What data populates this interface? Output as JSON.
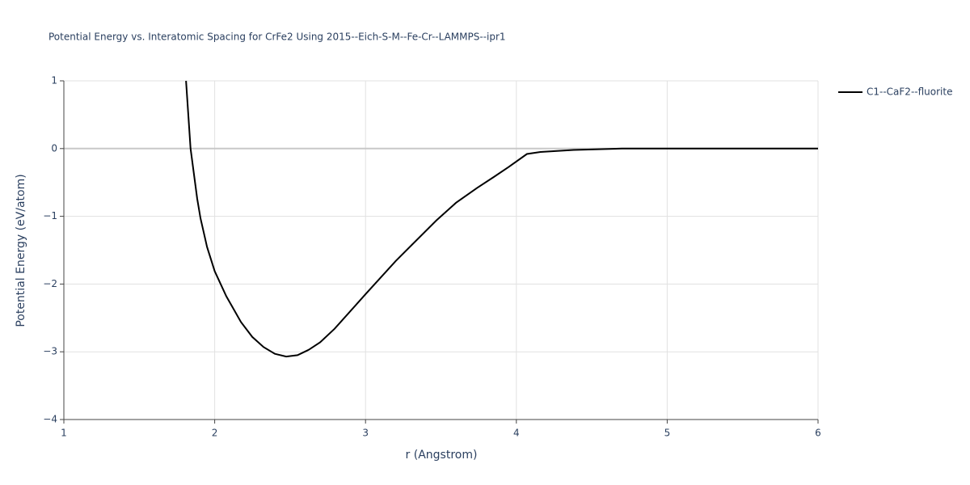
{
  "chart_data": {
    "type": "line",
    "title": "Potential Energy vs. Interatomic Spacing for CrFe2 Using 2015--Eich-S-M--Fe-Cr--LAMMPS--ipr1",
    "x_label": "r (Angstrom)",
    "y_label": "Potential Energy (eV/atom)",
    "x": [
      1.81,
      1.84,
      1.884,
      1.906,
      1.949,
      2.0,
      2.077,
      2.174,
      2.249,
      2.324,
      2.399,
      2.474,
      2.549,
      2.624,
      2.699,
      2.795,
      3.0,
      3.2,
      3.47,
      3.6,
      3.74,
      3.85,
      3.95,
      4.07,
      4.16,
      4.38,
      4.7,
      6.0
    ],
    "series": [
      {
        "name": "C1--CaF2--fluorite",
        "color": "#000000",
        "values": [
          1.0,
          0.0,
          -0.74,
          -1.03,
          -1.45,
          -1.81,
          -2.18,
          -2.56,
          -2.78,
          -2.93,
          -3.03,
          -3.07,
          -3.05,
          -2.97,
          -2.86,
          -2.66,
          -2.15,
          -1.66,
          -1.06,
          -0.8,
          -0.58,
          -0.42,
          -0.27,
          -0.08,
          -0.05,
          -0.02,
          0.0,
          0.0
        ]
      }
    ],
    "xlim": [
      1,
      6
    ],
    "xticks": [
      1,
      2,
      3,
      4,
      5,
      6
    ],
    "ylim": [
      -4,
      1
    ],
    "yticks": [
      {
        "value": -4,
        "label": "−4"
      },
      {
        "value": -3,
        "label": "−3"
      },
      {
        "value": -2,
        "label": "−2"
      },
      {
        "value": -1,
        "label": "−1"
      },
      0,
      1
    ],
    "grid": true,
    "legend": "right"
  }
}
